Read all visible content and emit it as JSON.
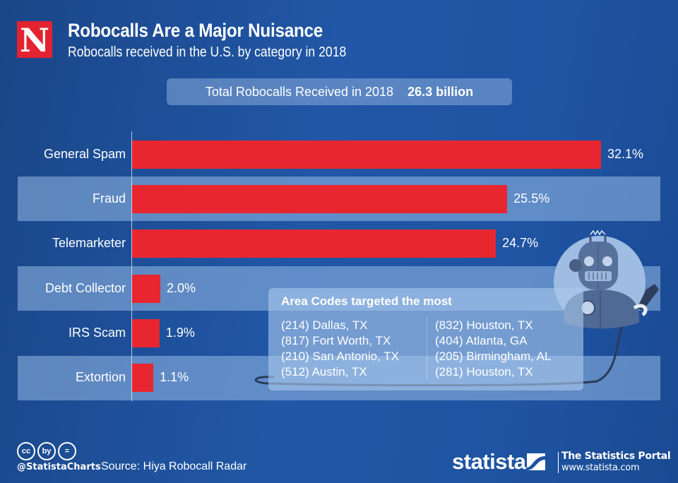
{
  "header": {
    "logo_letter": "N",
    "title": "Robocalls Are a Major Nuisance",
    "subtitle": "Robocalls received in the U.S. by category in 2018"
  },
  "total": {
    "label": "Total Robocalls Received in 2018",
    "value": "26.3 billion"
  },
  "chart_data": {
    "type": "bar",
    "orientation": "horizontal",
    "title": "Robocalls Are a Major Nuisance",
    "subtitle": "Robocalls received in the U.S. by category in 2018",
    "categories": [
      "General Spam",
      "Fraud",
      "Telemarketer",
      "Debt Collector",
      "IRS Scam",
      "Extortion"
    ],
    "values": [
      32.1,
      25.5,
      24.7,
      2.0,
      1.9,
      1.1
    ],
    "value_labels": [
      "32.1%",
      "25.5%",
      "24.7%",
      "2.0%",
      "1.9%",
      "1.1%"
    ],
    "unit": "%",
    "xlabel": "",
    "ylabel": "",
    "grid": false,
    "bar_color": "#e8262f"
  },
  "area_codes": {
    "title": "Area Codes targeted the most",
    "left": [
      "(214) Dallas, TX",
      "(817) Fort Worth, TX",
      "(210) San Antonio, TX",
      "(512) Austin, TX"
    ],
    "right": [
      "(832) Houston, TX",
      "(404) Atlanta, GA",
      "(205) Birmingham, AL",
      "(281) Houston, TX"
    ]
  },
  "footer": {
    "cc_icons": [
      "cc",
      "by",
      "="
    ],
    "handle": "@StatistaCharts",
    "source": "Source: Hiya Robocall Radar",
    "brand": "statista",
    "portal_title": "The Statistics Portal",
    "portal_url": "www.statista.com"
  },
  "colors": {
    "background": "#1f54a3",
    "bar": "#e8262f",
    "logo": "#e3232f"
  }
}
